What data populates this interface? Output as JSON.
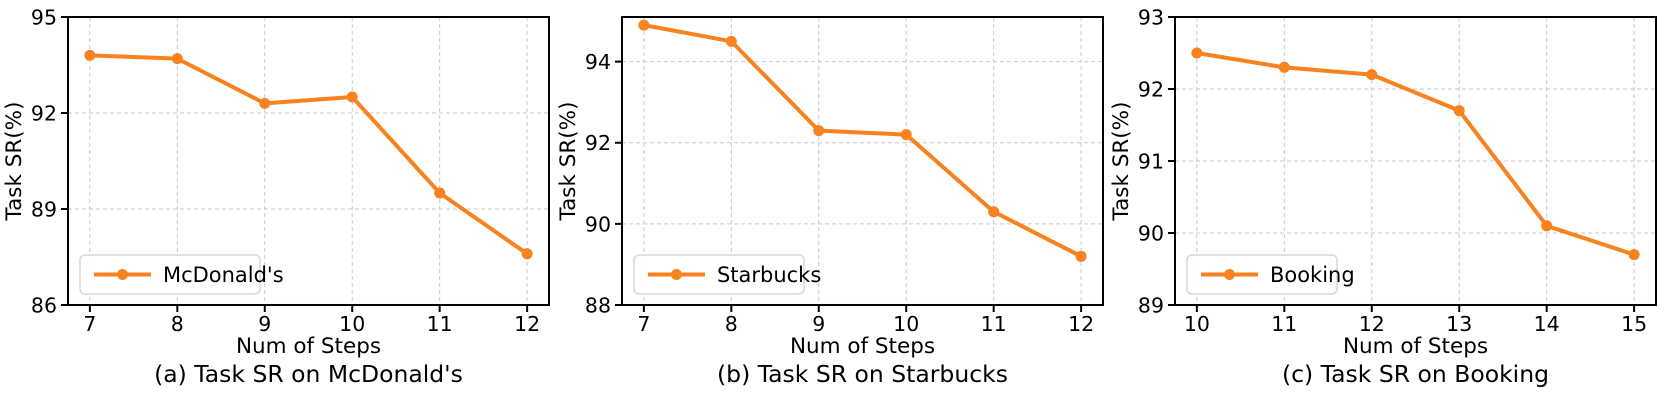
{
  "figure": {
    "description": "Three line charts of Task SR(%) vs Num of Steps",
    "line_color": "#f7821e",
    "marker_color": "#f7821e",
    "text_color": "#000000",
    "grid_color": "#c9c9c9",
    "spine_color": "#000000",
    "legend_border_color": "#d8d8d8",
    "legend_background": "#ffffff",
    "background": "#ffffff"
  },
  "chart_data": [
    {
      "type": "line",
      "title": "(a) Task SR on McDonald's",
      "xlabel": "Num of Steps",
      "ylabel": "Task SR(%)",
      "legend": "McDonald's",
      "legend_position": "lower left",
      "grid": true,
      "x": [
        7,
        8,
        9,
        10,
        11,
        12
      ],
      "y": [
        93.8,
        93.7,
        92.3,
        92.5,
        89.5,
        87.6
      ],
      "yticks": [
        86,
        89,
        92,
        95
      ],
      "ylim": [
        86,
        95
      ]
    },
    {
      "type": "line",
      "title": "(b) Task SR on Starbucks",
      "xlabel": "Num of Steps",
      "ylabel": "Task SR(%)",
      "legend": "Starbucks",
      "legend_position": "lower left",
      "grid": true,
      "x": [
        7,
        8,
        9,
        10,
        11,
        12
      ],
      "y": [
        94.9,
        94.5,
        92.3,
        92.2,
        90.3,
        89.2
      ],
      "yticks": [
        88,
        90,
        92,
        94
      ],
      "ylim": [
        88,
        95.1
      ]
    },
    {
      "type": "line",
      "title": "(c) Task SR on Booking",
      "xlabel": "Num of Steps",
      "ylabel": "Task SR(%)",
      "legend": "Booking",
      "legend_position": "lower left",
      "grid": true,
      "x": [
        10,
        11,
        12,
        13,
        14,
        15
      ],
      "y": [
        92.5,
        92.3,
        92.2,
        91.7,
        90.1,
        89.7
      ],
      "yticks": [
        89,
        90,
        91,
        92,
        93
      ],
      "ylim": [
        89,
        93
      ]
    }
  ]
}
